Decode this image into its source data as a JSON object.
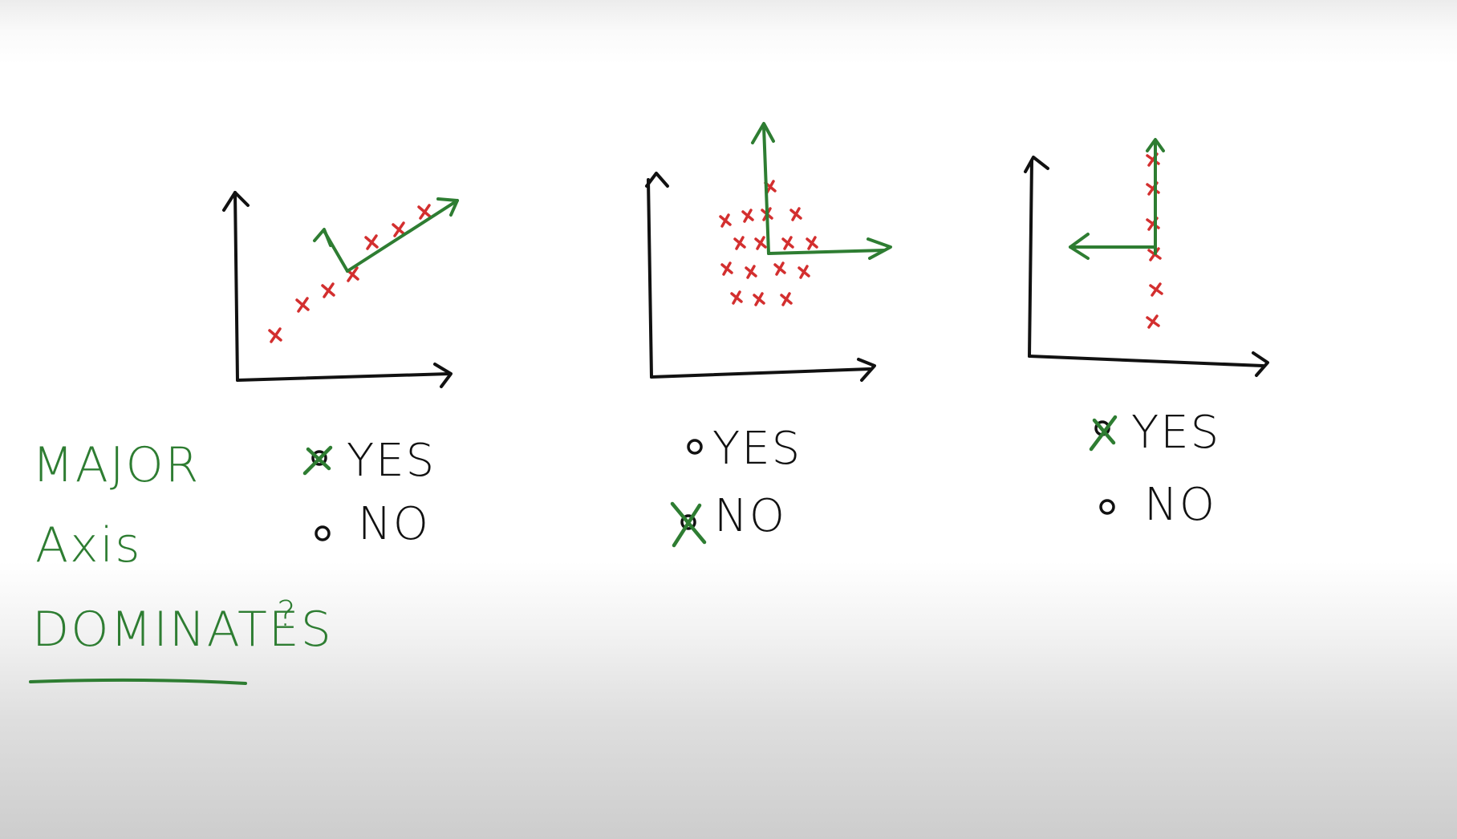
{
  "question": {
    "line1": "MAJOR",
    "line2": "Axis",
    "line3": "DOMINATES",
    "mark": "?"
  },
  "colors": {
    "ink": "#111111",
    "green": "#2e7d32",
    "red": "#d32f2f"
  },
  "panels": [
    {
      "options": [
        {
          "label": "YES",
          "selected": true
        },
        {
          "label": "NO",
          "selected": false
        }
      ]
    },
    {
      "options": [
        {
          "label": "YES",
          "selected": false
        },
        {
          "label": "NO",
          "selected": true
        }
      ]
    },
    {
      "options": [
        {
          "label": "YES",
          "selected": true
        },
        {
          "label": "NO",
          "selected": false
        }
      ]
    }
  ]
}
